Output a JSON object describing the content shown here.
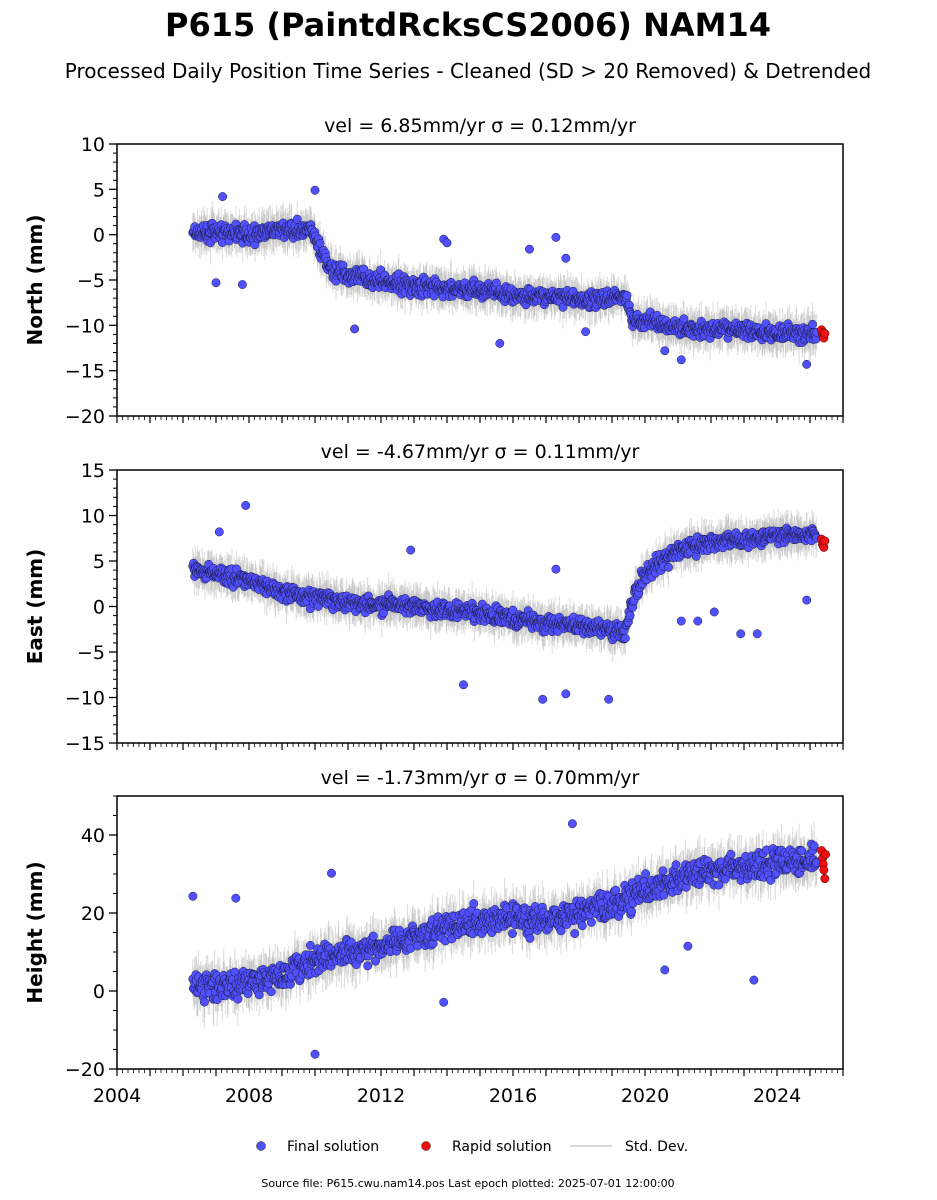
{
  "header": {
    "title": "P615 (PaintdRcksCS2006) NAM14",
    "subtitle": "Processed Daily Position Time Series - Cleaned (SD > 20 Removed) & Detrended"
  },
  "chart_data": [
    {
      "type": "scatter",
      "panel": "north",
      "title_vel": "vel = 6.85mm/yr",
      "title_sigma": "σ = 0.12mm/yr",
      "ylabel": "North (mm)",
      "xlim": [
        2004,
        2026
      ],
      "ylim": [
        -20,
        10
      ],
      "y_ticks": [
        -20,
        -15,
        -10,
        -5,
        0,
        5,
        10
      ],
      "x_ticks": [
        2004,
        2008,
        2012,
        2016,
        2020,
        2024
      ],
      "x_tick_labels_shown": false,
      "series": [
        {
          "name": "Final solution",
          "color": "#5050ff",
          "x": [
            2006.3,
            2007.0,
            2008.0,
            2009.0,
            2009.9,
            2010.4,
            2011.0,
            2012.0,
            2013.0,
            2014.0,
            2015.0,
            2016.0,
            2017.0,
            2018.0,
            2019.0,
            2019.4,
            2019.6,
            2020.0,
            2021.0,
            2022.0,
            2023.0,
            2024.0,
            2025.2
          ],
          "y": [
            0.2,
            0.3,
            0.0,
            0.6,
            0.4,
            -3.5,
            -4.5,
            -5.2,
            -5.6,
            -6.0,
            -6.0,
            -6.8,
            -6.8,
            -7.2,
            -7.0,
            -6.8,
            -9.2,
            -9.5,
            -10.2,
            -10.5,
            -10.5,
            -10.8,
            -11.0
          ]
        },
        {
          "name": "Rapid solution",
          "color": "#ee1111",
          "x": [
            2025.35,
            2025.38,
            2025.4,
            2025.42,
            2025.45
          ],
          "y": [
            -10.5,
            -11.0,
            -10.8,
            -11.4,
            -10.9
          ]
        }
      ],
      "outliers": {
        "x": [
          2007.0,
          2007.8,
          2007.2,
          2010.0,
          2011.2,
          2013.9,
          2014.0,
          2015.6,
          2016.5,
          2017.3,
          2017.6,
          2018.2,
          2020.6,
          2021.1,
          2024.9
        ],
        "y": [
          -5.3,
          -5.5,
          4.2,
          4.9,
          -10.4,
          -0.5,
          -0.9,
          -12.0,
          -1.6,
          -0.3,
          -2.6,
          -10.7,
          -12.8,
          -13.8,
          -14.3
        ]
      }
    },
    {
      "type": "scatter",
      "panel": "east",
      "title_vel": "vel = -4.67mm/yr",
      "title_sigma": "σ = 0.11mm/yr",
      "ylabel": "East (mm)",
      "xlim": [
        2004,
        2026
      ],
      "ylim": [
        -15,
        15
      ],
      "y_ticks": [
        -15,
        -10,
        -5,
        0,
        5,
        10,
        15
      ],
      "x_ticks": [
        2004,
        2008,
        2012,
        2016,
        2020,
        2024
      ],
      "x_tick_labels_shown": false,
      "series": [
        {
          "name": "Final solution",
          "color": "#5050ff",
          "x": [
            2006.3,
            2007.0,
            2008.0,
            2009.0,
            2010.0,
            2011.0,
            2012.0,
            2013.0,
            2014.0,
            2015.0,
            2016.0,
            2017.0,
            2018.0,
            2019.0,
            2019.4,
            2019.7,
            2020.0,
            2020.5,
            2021.0,
            2022.0,
            2023.0,
            2024.0,
            2025.2
          ],
          "y": [
            4.0,
            3.6,
            2.8,
            1.6,
            1.0,
            0.6,
            0.2,
            0.0,
            -0.3,
            -0.8,
            -1.3,
            -1.8,
            -2.2,
            -2.6,
            -2.8,
            1.5,
            3.5,
            4.8,
            6.2,
            7.0,
            7.4,
            7.8,
            8.0
          ]
        },
        {
          "name": "Rapid solution",
          "color": "#ee1111",
          "x": [
            2025.35,
            2025.38,
            2025.4,
            2025.42,
            2025.45
          ],
          "y": [
            7.4,
            6.8,
            7.0,
            6.5,
            7.2
          ]
        }
      ],
      "outliers": {
        "x": [
          2007.9,
          2007.1,
          2012.9,
          2014.5,
          2016.9,
          2017.3,
          2017.6,
          2018.9,
          2021.1,
          2021.6,
          2022.1,
          2022.9,
          2023.4,
          2024.9
        ],
        "y": [
          11.1,
          8.2,
          6.2,
          -8.6,
          -10.2,
          4.1,
          -9.6,
          -10.2,
          -1.6,
          -1.6,
          -0.6,
          -3.0,
          -3.0,
          0.7
        ]
      }
    },
    {
      "type": "scatter",
      "panel": "height",
      "title_vel": "vel = -1.73mm/yr",
      "title_sigma": "σ = 0.70mm/yr",
      "ylabel": "Height (mm)",
      "xlim": [
        2004,
        2026
      ],
      "ylim": [
        -20,
        50
      ],
      "y_ticks": [
        -20,
        0,
        20,
        40
      ],
      "x_ticks": [
        2004,
        2008,
        2012,
        2016,
        2020,
        2024
      ],
      "x_tick_labels_shown": true,
      "series": [
        {
          "name": "Final solution",
          "color": "#5050ff",
          "x": [
            2006.3,
            2007.0,
            2008.0,
            2009.0,
            2010.0,
            2011.0,
            2012.0,
            2013.0,
            2014.0,
            2015.0,
            2016.0,
            2017.0,
            2018.0,
            2019.0,
            2020.0,
            2021.0,
            2022.0,
            2023.0,
            2024.0,
            2025.2
          ],
          "y": [
            2.0,
            1.0,
            2.0,
            4.0,
            8.0,
            10.0,
            12.0,
            14.0,
            16.0,
            18.0,
            19.0,
            18.0,
            20.0,
            22.0,
            26.0,
            29.0,
            31.0,
            32.0,
            33.0,
            34.0
          ]
        },
        {
          "name": "Rapid solution",
          "color": "#ee1111",
          "x": [
            2025.35,
            2025.38,
            2025.4,
            2025.42,
            2025.45,
            2025.47
          ],
          "y": [
            36.0,
            34.0,
            32.5,
            31.0,
            28.8,
            35.0
          ]
        }
      ],
      "outliers": {
        "x": [
          2006.3,
          2007.6,
          2010.0,
          2010.5,
          2013.9,
          2017.8,
          2020.6,
          2021.3,
          2023.3
        ],
        "y": [
          24.3,
          23.8,
          -16.2,
          30.2,
          -2.9,
          42.9,
          5.4,
          11.5,
          2.8
        ]
      }
    }
  ],
  "legend": {
    "final_label": "Final solution",
    "rapid_label": "Rapid solution",
    "std_label": "Std. Dev.",
    "final_color": "#5050ff",
    "rapid_color": "#ee1111",
    "std_color": "#c8c8c8"
  },
  "footer": {
    "source": "Source file: P615.cwu.nam14.pos  Last epoch plotted: 2025-07-01 12:00:00"
  }
}
